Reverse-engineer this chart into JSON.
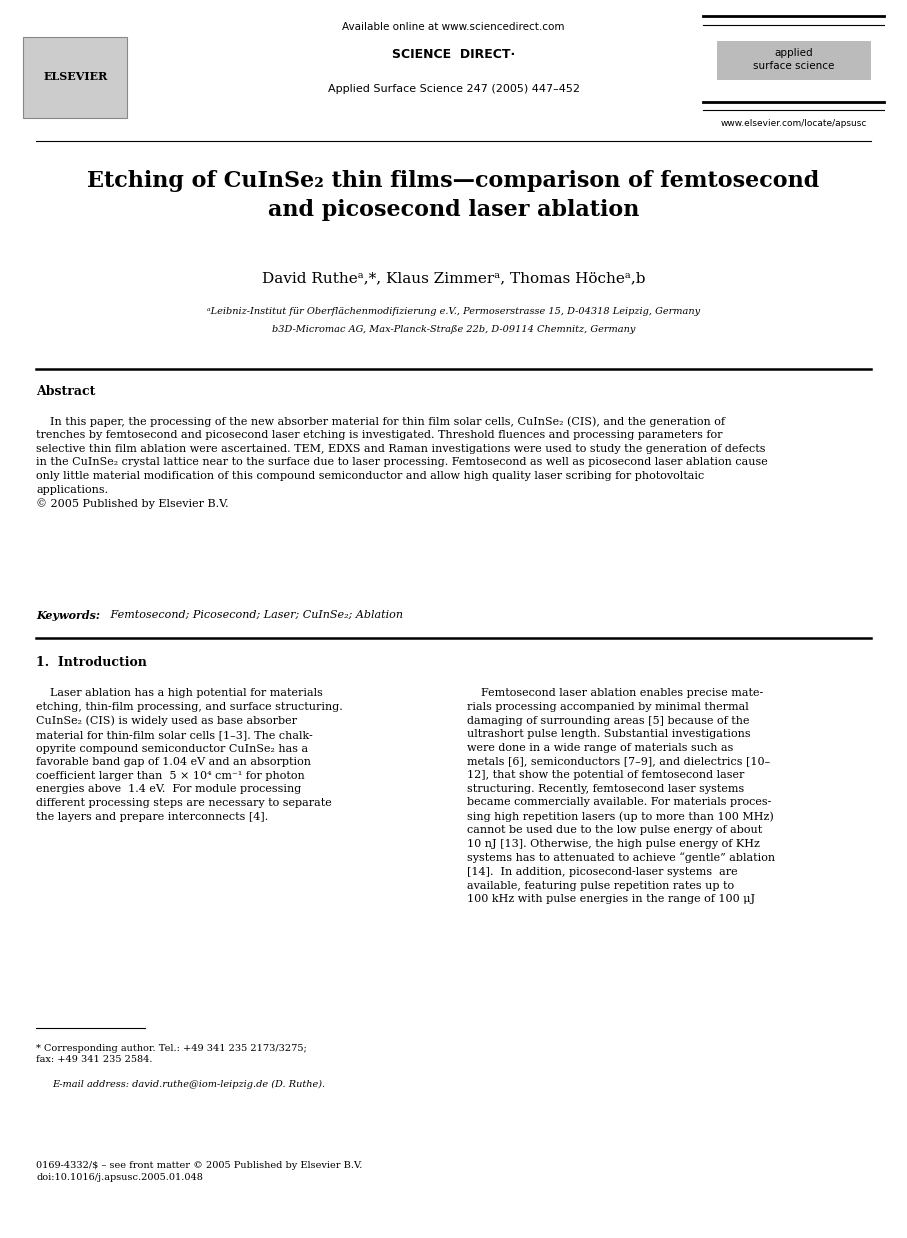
{
  "bg_color": "#ffffff",
  "page_width": 9.07,
  "page_height": 12.38,
  "header": {
    "available_online": "Available online at www.sciencedirect.com",
    "sciencedirect_label": "SCIENCE  DIRECT·",
    "journal_name": "Applied Surface Science 247 (2005) 447–452",
    "elsevier_text": "ELSEVIER",
    "applied_surface": "applied\nsurface science",
    "website": "www.elsevier.com/locate/apsusc"
  },
  "title": "Etching of CuInSe₂ thin films—comparison of femtosecond\nand picosecond laser ablation",
  "authors": "David Rutheᵃ,*, Klaus Zimmerᵃ, Thomas Höcheᵃ,b",
  "affil_a": "ᵃLeibniz-Institut für Oberflächenmodifizierung e.V., Permoserstrasse 15, D-04318 Leipzig, Germany",
  "affil_b": "b3D-Micromac AG, Max-Planck-Straße 22b, D-09114 Chemnitz, Germany",
  "abstract_title": "Abstract",
  "abstract_text": "    In this paper, the processing of the new absorber material for thin film solar cells, CuInSe₂ (CIS), and the generation of\ntrenches by femtosecond and picosecond laser etching is investigated. Threshold fluences and processing parameters for\nselective thin film ablation were ascertained. TEM, EDXS and Raman investigations were used to study the generation of defects\nin the CuInSe₂ crystal lattice near to the surface due to laser processing. Femtosecond as well as picosecond laser ablation cause\nonly little material modification of this compound semiconductor and allow high quality laser scribing for photovoltaic\napplications.\n© 2005 Published by Elsevier B.V.",
  "keywords_label": "Keywords:",
  "keywords_text": " Femtosecond; Picosecond; Laser; CuInSe₂; Ablation",
  "section1_title": "1.  Introduction",
  "intro_left": "    Laser ablation has a high potential for materials\netching, thin-film processing, and surface structuring.\nCuInSe₂ (CIS) is widely used as base absorber\nmaterial for thin-film solar cells [1–3]. The chalk-\nopyrite compound semiconductor CuInSe₂ has a\nfavorable band gap of 1.04 eV and an absorption\ncoefficient larger than  5 × 10⁴ cm⁻¹ for photon\nenergies above  1.4 eV.  For module processing\ndifferent processing steps are necessary to separate\nthe layers and prepare interconnects [4].",
  "intro_right": "    Femtosecond laser ablation enables precise mate-\nrials processing accompanied by minimal thermal\ndamaging of surrounding areas [5] because of the\nultrashort pulse length. Substantial investigations\nwere done in a wide range of materials such as\nmetals [6], semiconductors [7–9], and dielectrics [10–\n12], that show the potential of femtosecond laser\nstructuring. Recently, femtosecond laser systems\nbecame commercially available. For materials proces-\nsing high repetition lasers (up to more than 100 MHz)\ncannot be used due to the low pulse energy of about\n10 nJ [13]. Otherwise, the high pulse energy of KHz\nsystems has to attenuated to achieve “gentle” ablation\n[14].  In addition, picosecond-laser systems  are\navailable, featuring pulse repetition rates up to\n100 kHz with pulse energies in the range of 100 μJ",
  "footnote_star": "* Corresponding author. Tel.: +49 341 235 2173/3275;\nfax: +49 341 235 2584.",
  "footnote_email": "E-mail address: david.ruthe@iom-leipzig.de (D. Ruthe).",
  "bottom_left_text": "0169-4332/$ – see front matter © 2005 Published by Elsevier B.V.\ndoi:10.1016/j.apsusc.2005.01.048",
  "link_color": "#0000cc",
  "text_color": "#000000",
  "title_color": "#000000"
}
